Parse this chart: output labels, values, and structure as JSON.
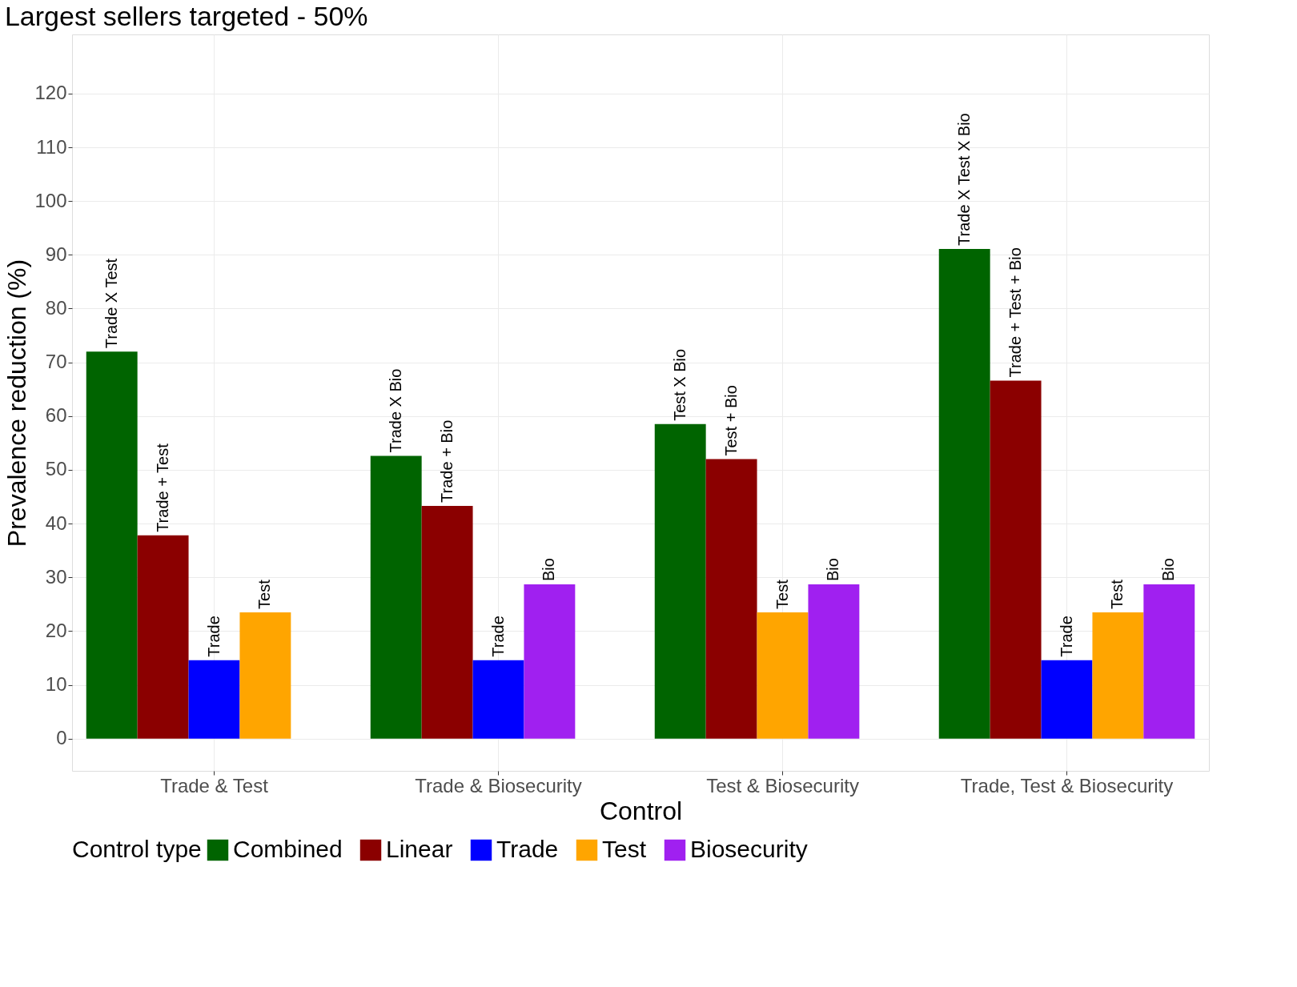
{
  "chart_data": {
    "type": "bar",
    "title": "Largest sellers targeted - 50%",
    "xlabel": "Control",
    "ylabel": "Prevalence reduction (%)",
    "legend_title": "Control type",
    "categories": [
      "Trade & Test",
      "Trade & Biosecurity",
      "Test & Biosecurity",
      "Trade, Test & Biosecurity"
    ],
    "series": [
      {
        "name": "Combined",
        "color": "#006400",
        "values": [
          72,
          52.6,
          58.5,
          91.1
        ],
        "value_labels": [
          "Trade X Test",
          "Trade X Bio",
          "Test X Bio",
          "Trade X Test X Bio"
        ]
      },
      {
        "name": "Linear",
        "color": "#8b0000",
        "values": [
          37.8,
          43.3,
          52,
          66.6
        ],
        "value_labels": [
          "Trade + Test",
          "Trade + Bio",
          "Test + Bio",
          "Trade + Test + Bio"
        ]
      },
      {
        "name": "Trade",
        "color": "#0000ff",
        "values": [
          14.6,
          14.6,
          null,
          14.6
        ],
        "value_labels": [
          "Trade",
          "Trade",
          null,
          "Trade"
        ]
      },
      {
        "name": "Test",
        "color": "#ffa500",
        "values": [
          23.5,
          null,
          23.5,
          23.5
        ],
        "value_labels": [
          "Test",
          null,
          "Test",
          "Test"
        ]
      },
      {
        "name": "Biosecurity",
        "color": "#a020f0",
        "values": [
          null,
          28.7,
          28.7,
          28.7
        ],
        "value_labels": [
          null,
          "Bio",
          "Bio",
          "Bio"
        ]
      }
    ],
    "ylim": [
      -6,
      131
    ],
    "yticks": [
      0,
      10,
      20,
      30,
      40,
      50,
      60,
      70,
      80,
      90,
      100,
      110,
      120
    ],
    "grid": true,
    "legend": "bottom"
  }
}
